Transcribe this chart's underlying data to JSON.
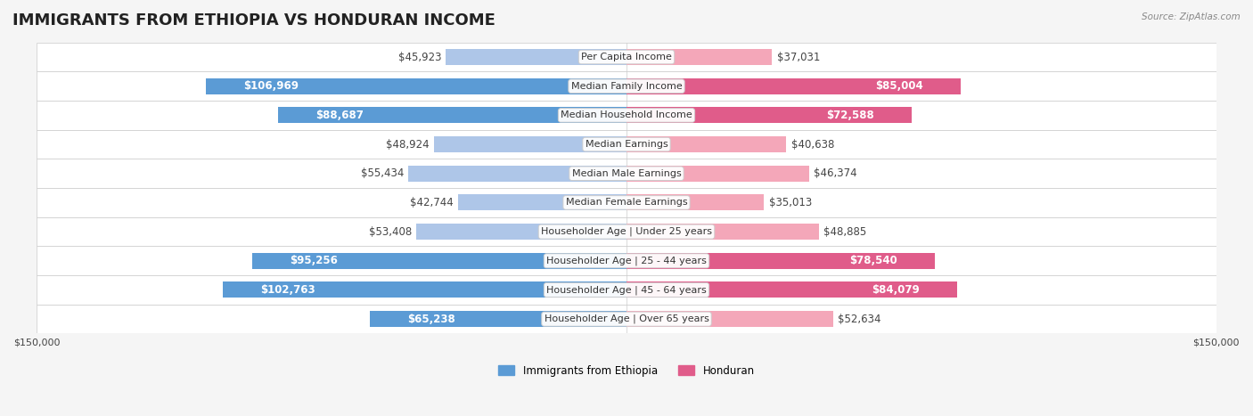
{
  "title": "IMMIGRANTS FROM ETHIOPIA VS HONDURAN INCOME",
  "source": "Source: ZipAtlas.com",
  "categories": [
    "Per Capita Income",
    "Median Family Income",
    "Median Household Income",
    "Median Earnings",
    "Median Male Earnings",
    "Median Female Earnings",
    "Householder Age | Under 25 years",
    "Householder Age | 25 - 44 years",
    "Householder Age | 45 - 64 years",
    "Householder Age | Over 65 years"
  ],
  "ethiopia_values": [
    45923,
    106969,
    88687,
    48924,
    55434,
    42744,
    53408,
    95256,
    102763,
    65238
  ],
  "honduran_values": [
    37031,
    85004,
    72588,
    40638,
    46374,
    35013,
    48885,
    78540,
    84079,
    52634
  ],
  "ethiopia_labels": [
    "$45,923",
    "$106,969",
    "$88,687",
    "$48,924",
    "$55,434",
    "$42,744",
    "$53,408",
    "$95,256",
    "$102,763",
    "$65,238"
  ],
  "honduran_labels": [
    "$37,031",
    "$85,004",
    "$72,588",
    "$40,638",
    "$46,374",
    "$35,013",
    "$48,885",
    "$78,540",
    "$84,079",
    "$52,634"
  ],
  "ethiopia_color_light": "#aec6e8",
  "ethiopia_color_dark": "#5b9bd5",
  "honduran_color_light": "#f4a7b9",
  "honduran_color_dark": "#e05c8a",
  "background_color": "#f5f5f5",
  "row_bg_color": "#ffffff",
  "max_value": 150000,
  "legend_ethiopia": "Immigrants from Ethiopia",
  "legend_honduran": "Honduran",
  "title_fontsize": 13,
  "label_fontsize": 8.5,
  "axis_label_fontsize": 8,
  "category_fontsize": 8
}
